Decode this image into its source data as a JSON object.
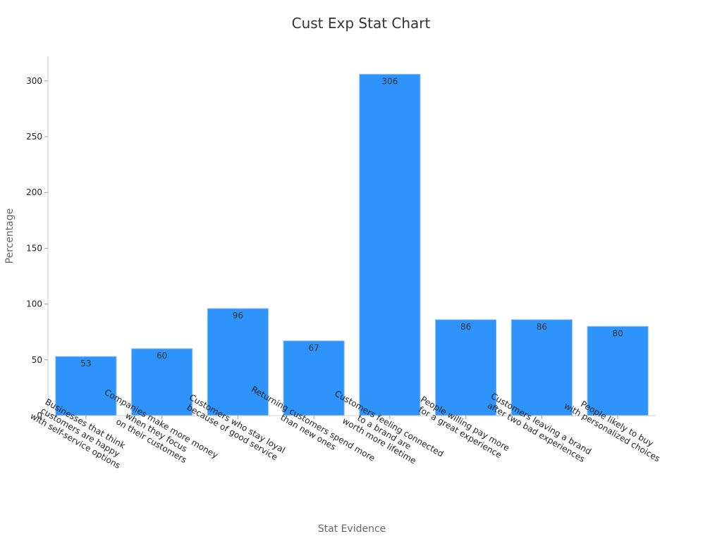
{
  "chart_data": {
    "type": "bar",
    "title": "Cust Exp Stat Chart",
    "xlabel": "Stat Evidence",
    "ylabel": "Percentage",
    "ylim": [
      0,
      322
    ],
    "yticks": [
      0,
      50,
      100,
      150,
      200,
      250,
      300
    ],
    "grid": false,
    "bar_color": "#2e93fa",
    "categories": [
      [
        "Businesses that think",
        "customers are happy",
        "with self-service options"
      ],
      [
        "Companies make more money",
        "when they focus",
        "on their customers"
      ],
      [
        "Customers who stay loyal",
        "because of good service"
      ],
      [
        "Returning customers spend more",
        "than new ones"
      ],
      [
        "Customers feeling connected",
        "to a brand are",
        "worth more lifetime"
      ],
      [
        "People willing pay more",
        "for a great experience"
      ],
      [
        "Customers leaving a brand",
        "after two bad experiences"
      ],
      [
        "People likely to buy",
        "with personalized choices"
      ]
    ],
    "values": [
      53,
      60,
      96,
      67,
      306,
      86,
      86,
      80
    ]
  }
}
